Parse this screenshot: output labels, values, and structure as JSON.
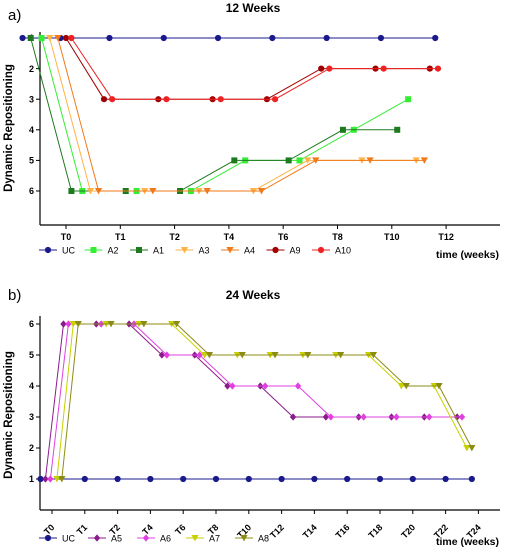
{
  "chart_data": [
    {
      "type": "line",
      "panel_label": "a)",
      "title": "12 Weeks",
      "ylabel": "Dynamic Repositioning",
      "xlabel": "time (weeks)",
      "categories": [
        "T0",
        "T1",
        "T2",
        "T4",
        "T6",
        "T8",
        "T10",
        "T12"
      ],
      "ylim": [
        1,
        6
      ],
      "yticks": [
        1,
        2,
        3,
        4,
        5,
        6
      ],
      "grid": false,
      "legend_position": "bottom",
      "series": [
        {
          "name": "UC",
          "color": "#1a1a8c",
          "marker": "circle",
          "points": [
            [
              -0.8,
              1
            ],
            [
              -0.1,
              1
            ],
            [
              0.8,
              1
            ],
            [
              1.8,
              1
            ],
            [
              2.8,
              1
            ],
            [
              3.8,
              1
            ],
            [
              4.8,
              1
            ],
            [
              5.8,
              1
            ],
            [
              6.8,
              1
            ]
          ]
        },
        {
          "name": "A2",
          "color": "#33ee33",
          "marker": "square",
          "points": [
            [
              -0.45,
              1
            ],
            [
              0.3,
              6
            ],
            [
              1.3,
              6
            ],
            [
              2.3,
              6
            ],
            [
              3.3,
              5
            ],
            [
              4.3,
              5
            ],
            [
              5.3,
              4
            ],
            [
              6.3,
              3
            ]
          ]
        },
        {
          "name": "A1",
          "color": "#1e7a1e",
          "marker": "square",
          "points": [
            [
              -0.65,
              1
            ],
            [
              0.1,
              6
            ],
            [
              1.1,
              6
            ],
            [
              2.1,
              6
            ],
            [
              3.1,
              5
            ],
            [
              4.1,
              5
            ],
            [
              5.1,
              4
            ],
            [
              6.1,
              4
            ]
          ]
        },
        {
          "name": "A3",
          "color": "#ffb347",
          "marker": "triangle-down",
          "points": [
            [
              -0.3,
              1
            ],
            [
              0.45,
              6
            ],
            [
              1.45,
              6
            ],
            [
              2.45,
              6
            ],
            [
              3.45,
              6
            ],
            [
              4.45,
              5
            ],
            [
              5.45,
              5
            ],
            [
              6.45,
              5
            ]
          ]
        },
        {
          "name": "A4",
          "color": "#f07a1a",
          "marker": "triangle-down",
          "points": [
            [
              -0.15,
              1
            ],
            [
              0.6,
              6
            ],
            [
              1.6,
              6
            ],
            [
              2.6,
              6
            ],
            [
              3.6,
              6
            ],
            [
              4.6,
              5
            ],
            [
              5.6,
              5
            ],
            [
              6.6,
              5
            ]
          ]
        },
        {
          "name": "A9",
          "color": "#a00000",
          "marker": "circle",
          "points": [
            [
              0.0,
              1
            ],
            [
              0.7,
              3
            ],
            [
              1.7,
              3
            ],
            [
              2.7,
              3
            ],
            [
              3.7,
              3
            ],
            [
              4.7,
              2
            ],
            [
              5.7,
              2
            ],
            [
              6.7,
              2
            ]
          ]
        },
        {
          "name": "A10",
          "color": "#ee2222",
          "marker": "circle",
          "points": [
            [
              0.1,
              1
            ],
            [
              0.85,
              3
            ],
            [
              1.85,
              3
            ],
            [
              2.85,
              3
            ],
            [
              3.85,
              3
            ],
            [
              4.85,
              2
            ],
            [
              5.85,
              2
            ],
            [
              6.85,
              2
            ]
          ]
        }
      ]
    },
    {
      "type": "line",
      "panel_label": "b)",
      "title": "24 Weeks",
      "ylabel": "Dynamic Repositioning",
      "xlabel": "time (weeks)",
      "categories": [
        "T0",
        "T1",
        "T2",
        "T4",
        "T6",
        "T8",
        "T10",
        "T12",
        "T14",
        "T16",
        "T18",
        "T20",
        "T22",
        "T24"
      ],
      "ylim": [
        1,
        6
      ],
      "yticks": [
        1,
        2,
        3,
        4,
        5,
        6
      ],
      "grid": false,
      "legend_position": "bottom",
      "series": [
        {
          "name": "UC",
          "color": "#1a1a8c",
          "marker": "circle",
          "points": [
            [
              -0.35,
              1
            ],
            [
              1,
              1
            ],
            [
              2,
              1
            ],
            [
              3,
              1
            ],
            [
              4,
              1
            ],
            [
              5,
              1
            ],
            [
              6,
              1
            ],
            [
              7,
              1
            ],
            [
              8,
              1
            ],
            [
              9,
              1
            ],
            [
              10,
              1
            ],
            [
              11,
              1
            ],
            [
              12,
              1
            ],
            [
              12.8,
              1
            ]
          ]
        },
        {
          "name": "A5",
          "color": "#8b1a8b",
          "marker": "diamond",
          "points": [
            [
              -0.2,
              1
            ],
            [
              0.35,
              6
            ],
            [
              1.35,
              6
            ],
            [
              2.35,
              6
            ],
            [
              3.35,
              5
            ],
            [
              4.35,
              5
            ],
            [
              5.35,
              4
            ],
            [
              6.35,
              4
            ],
            [
              7.35,
              3
            ],
            [
              8.35,
              3
            ],
            [
              9.35,
              3
            ],
            [
              10.35,
              3
            ],
            [
              11.35,
              3
            ],
            [
              12.35,
              3
            ]
          ]
        },
        {
          "name": "A6",
          "color": "#e040e0",
          "marker": "diamond",
          "points": [
            [
              -0.05,
              1
            ],
            [
              0.5,
              6
            ],
            [
              1.5,
              6
            ],
            [
              2.5,
              6
            ],
            [
              3.5,
              5
            ],
            [
              4.5,
              5
            ],
            [
              5.5,
              4
            ],
            [
              6.5,
              4
            ],
            [
              7.5,
              4
            ],
            [
              8.5,
              3
            ],
            [
              9.5,
              3
            ],
            [
              10.5,
              3
            ],
            [
              11.5,
              3
            ],
            [
              12.5,
              3
            ]
          ]
        },
        {
          "name": "A7",
          "color": "#c8d000",
          "marker": "triangle-down",
          "points": [
            [
              0.15,
              1
            ],
            [
              0.65,
              6
            ],
            [
              1.65,
              6
            ],
            [
              2.65,
              6
            ],
            [
              3.65,
              6
            ],
            [
              4.65,
              5
            ],
            [
              5.65,
              5
            ],
            [
              6.65,
              5
            ],
            [
              7.65,
              5
            ],
            [
              8.65,
              5
            ],
            [
              9.65,
              5
            ],
            [
              10.65,
              4
            ],
            [
              11.65,
              4
            ],
            [
              12.65,
              2
            ]
          ]
        },
        {
          "name": "A8",
          "color": "#8c8c14",
          "marker": "triangle-down",
          "points": [
            [
              0.3,
              1
            ],
            [
              0.8,
              6
            ],
            [
              1.8,
              6
            ],
            [
              2.8,
              6
            ],
            [
              3.8,
              6
            ],
            [
              4.8,
              5
            ],
            [
              5.8,
              5
            ],
            [
              6.8,
              5
            ],
            [
              7.8,
              5
            ],
            [
              8.8,
              5
            ],
            [
              9.8,
              5
            ],
            [
              10.8,
              4
            ],
            [
              11.8,
              4
            ],
            [
              12.8,
              2
            ]
          ]
        }
      ]
    }
  ]
}
